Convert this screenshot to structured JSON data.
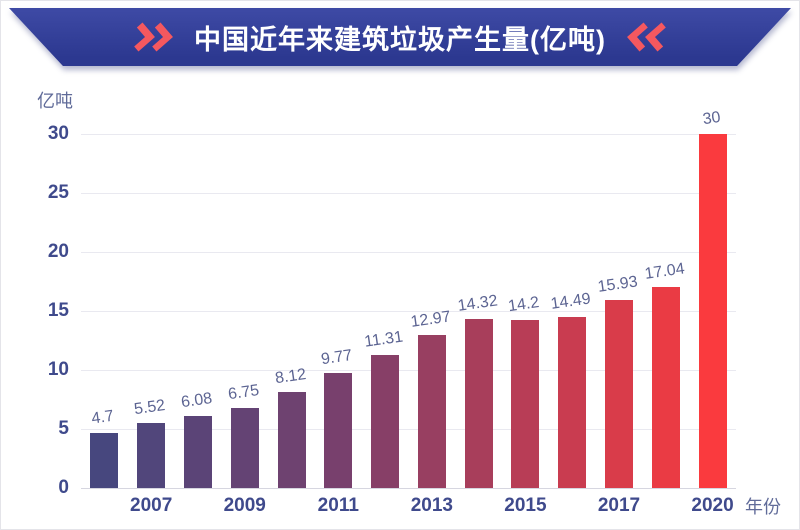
{
  "header": {
    "title": "中国近年来建筑垃圾产生量(亿吨)",
    "left_icon": "double-chevron-right",
    "right_icon": "double-chevron-left",
    "colors": {
      "banner_top": "#3e4aa5",
      "banner_bottom": "#2c3890",
      "chevron": "#f5585f",
      "title_text": "#ffffff"
    }
  },
  "chart_data": {
    "type": "bar",
    "title": "中国近年来建筑垃圾产生量(亿吨)",
    "unit_label": "亿吨",
    "xlabel": "年份",
    "values": [
      4.7,
      5.52,
      6.08,
      6.75,
      8.12,
      9.77,
      11.31,
      12.97,
      14.32,
      14.2,
      14.49,
      15.93,
      17.04,
      30
    ],
    "value_labels": [
      "4.7",
      "5.52",
      "6.08",
      "6.75",
      "8.12",
      "9.77",
      "11.31",
      "12.97",
      "14.32",
      "14.2",
      "14.49",
      "15.93",
      "17.04",
      "30"
    ],
    "x_tick_labels": [
      "2007",
      "2009",
      "2011",
      "2013",
      "2015",
      "2017",
      "2020"
    ],
    "x_tick_bar_indices": [
      1,
      3,
      5,
      7,
      9,
      11,
      13
    ],
    "y_ticks": [
      0,
      5,
      10,
      15,
      20,
      25,
      30
    ],
    "ylim": [
      0,
      30
    ],
    "grid": true,
    "legend": "none",
    "colors": {
      "bar_gradient_stops": [
        [
          0,
          "#47477e"
        ],
        [
          0.4,
          "#7a406c"
        ],
        [
          1,
          "#fa3a3e"
        ]
      ],
      "tick_text": "#3f4a8c",
      "value_text": "#5c6492",
      "muted_text": "#606b99",
      "gridline": "#e9e9f0",
      "axis_line": "#d6d6e0"
    }
  }
}
